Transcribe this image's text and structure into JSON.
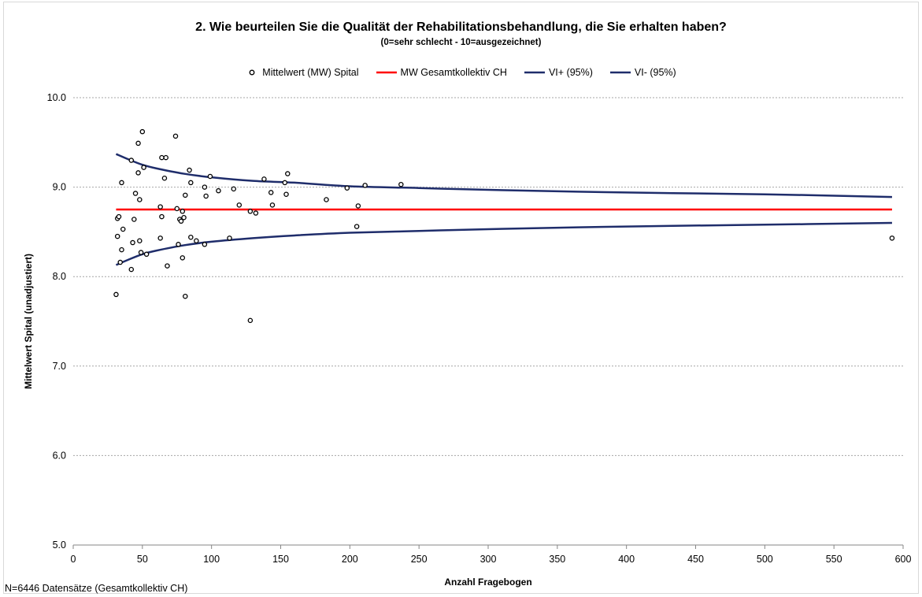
{
  "chart_data": {
    "type": "scatter",
    "title": "2. Wie beurteilen Sie die Qualität der Rehabilitationsbehandlung,  die Sie erhalten haben?",
    "subtitle": "(0=sehr schlecht - 10=ausgezeichnet)",
    "xlabel": "Anzahl Fragebogen",
    "ylabel": "Mittelwert Spital (unadjustiert)",
    "xlim": [
      0,
      600
    ],
    "ylim": [
      5.0,
      10.0
    ],
    "x_ticks": [
      "0",
      "50",
      "100",
      "150",
      "200",
      "250",
      "300",
      "350",
      "400",
      "450",
      "500",
      "550",
      "600"
    ],
    "y_ticks": [
      "5.0",
      "6.0",
      "7.0",
      "8.0",
      "9.0",
      "10.0"
    ],
    "grid": "horizontal dotted",
    "legend_position": "top",
    "legend": [
      {
        "name": "Mittelwert (MW) Spital",
        "marker": "circle"
      },
      {
        "name": "MW Gesamtkollektiv CH",
        "marker": "line",
        "color": "#ff0000"
      },
      {
        "name": "VI+ (95%)",
        "marker": "line",
        "color": "#1f2d6b"
      },
      {
        "name": "VI- (95%)",
        "marker": "line",
        "color": "#1f2d6b"
      }
    ],
    "series": [
      {
        "name": "Mittelwert (MW) Spital",
        "type": "scatter",
        "points": [
          [
            31,
            7.8
          ],
          [
            32,
            8.65
          ],
          [
            32,
            8.45
          ],
          [
            33,
            8.67
          ],
          [
            34,
            8.16
          ],
          [
            35,
            9.05
          ],
          [
            35,
            8.3
          ],
          [
            36,
            8.53
          ],
          [
            42,
            9.3
          ],
          [
            42,
            8.08
          ],
          [
            43,
            8.38
          ],
          [
            44,
            8.64
          ],
          [
            45,
            8.93
          ],
          [
            47,
            9.49
          ],
          [
            47,
            9.16
          ],
          [
            48,
            8.86
          ],
          [
            48,
            8.4
          ],
          [
            49,
            8.27
          ],
          [
            50,
            9.62
          ],
          [
            51,
            9.22
          ],
          [
            53,
            8.25
          ],
          [
            63,
            8.78
          ],
          [
            63,
            8.43
          ],
          [
            64,
            9.33
          ],
          [
            64,
            8.67
          ],
          [
            66,
            9.1
          ],
          [
            67,
            9.33
          ],
          [
            68,
            8.12
          ],
          [
            74,
            9.57
          ],
          [
            75,
            8.76
          ],
          [
            76,
            8.36
          ],
          [
            77,
            8.64
          ],
          [
            78,
            8.62
          ],
          [
            79,
            8.21
          ],
          [
            79,
            8.73
          ],
          [
            80,
            8.66
          ],
          [
            81,
            7.78
          ],
          [
            81,
            8.91
          ],
          [
            84,
            9.19
          ],
          [
            85,
            9.05
          ],
          [
            85,
            8.44
          ],
          [
            89,
            8.4
          ],
          [
            95,
            9.0
          ],
          [
            95,
            8.36
          ],
          [
            96,
            8.9
          ],
          [
            99,
            9.12
          ],
          [
            105,
            8.96
          ],
          [
            113,
            8.43
          ],
          [
            116,
            8.98
          ],
          [
            120,
            8.8
          ],
          [
            128,
            8.73
          ],
          [
            128,
            7.51
          ],
          [
            132,
            8.71
          ],
          [
            138,
            9.09
          ],
          [
            143,
            8.94
          ],
          [
            144,
            8.8
          ],
          [
            153,
            9.05
          ],
          [
            154,
            8.92
          ],
          [
            155,
            9.15
          ],
          [
            183,
            8.86
          ],
          [
            198,
            8.99
          ],
          [
            205,
            8.56
          ],
          [
            206,
            8.79
          ],
          [
            211,
            9.02
          ],
          [
            237,
            9.03
          ],
          [
            592,
            8.43
          ]
        ]
      },
      {
        "name": "MW Gesamtkollektiv CH",
        "type": "line",
        "color": "#ff0000",
        "x": [
          31,
          592
        ],
        "y": [
          8.75,
          8.75
        ]
      },
      {
        "name": "VI+ (95%)",
        "type": "line",
        "color": "#1f2d6b",
        "x": [
          31,
          40,
          50,
          60,
          80,
          100,
          130,
          160,
          200,
          250,
          300,
          400,
          500,
          592
        ],
        "y": [
          9.37,
          9.31,
          9.25,
          9.21,
          9.15,
          9.11,
          9.07,
          9.05,
          9.01,
          8.99,
          8.97,
          8.94,
          8.92,
          8.89
        ]
      },
      {
        "name": "VI- (95%)",
        "type": "line",
        "color": "#1f2d6b",
        "x": [
          31,
          40,
          50,
          60,
          80,
          100,
          130,
          160,
          200,
          250,
          300,
          400,
          500,
          592
        ],
        "y": [
          8.13,
          8.19,
          8.25,
          8.29,
          8.35,
          8.39,
          8.43,
          8.46,
          8.49,
          8.51,
          8.53,
          8.56,
          8.58,
          8.6
        ]
      }
    ]
  },
  "footnote": "N=6446 Datensätze (Gesamtkollektiv CH)",
  "colors": {
    "mean_line": "#ff0000",
    "ci_line": "#1f2d6b",
    "grid": "#a6a6a6",
    "axis": "#868686"
  }
}
